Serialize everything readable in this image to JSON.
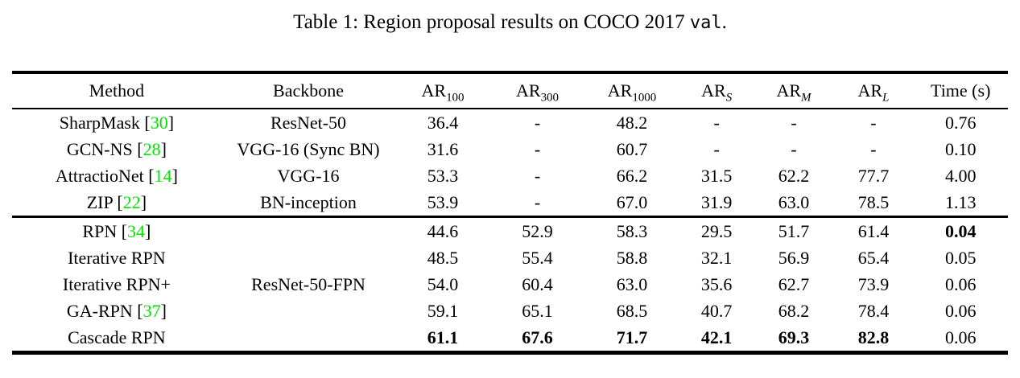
{
  "caption": {
    "prefix": "Table 1: Region proposal results on COCO 2017 ",
    "mono": "val",
    "suffix": "."
  },
  "colors": {
    "citation_green": "#00e400",
    "rule_black": "#000000"
  },
  "table": {
    "headers": [
      {
        "base": "Method"
      },
      {
        "base": "Backbone"
      },
      {
        "base": "AR",
        "sub": "100"
      },
      {
        "base": "AR",
        "sub": "300"
      },
      {
        "base": "AR",
        "sub": "1000"
      },
      {
        "base": "AR",
        "sub": "S",
        "italic_sub": true
      },
      {
        "base": "AR",
        "sub": "M",
        "italic_sub": true
      },
      {
        "base": "AR",
        "sub": "L",
        "italic_sub": true
      },
      {
        "base": "Time (s)"
      }
    ],
    "sections": [
      {
        "rows": [
          {
            "method": {
              "name": "SharpMask",
              "cite": "30"
            },
            "backbone": "ResNet-50",
            "values": [
              "36.4",
              "-",
              "48.2",
              "-",
              "-",
              "-",
              "0.76"
            ],
            "bold_values": []
          },
          {
            "method": {
              "name": "GCN-NS",
              "cite": "28"
            },
            "backbone": "VGG-16 (Sync BN)",
            "values": [
              "31.6",
              "-",
              "60.7",
              "-",
              "-",
              "-",
              "0.10"
            ],
            "bold_values": []
          },
          {
            "method": {
              "name": "AttractioNet",
              "cite": "14"
            },
            "backbone": "VGG-16",
            "values": [
              "53.3",
              "-",
              "66.2",
              "31.5",
              "62.2",
              "77.7",
              "4.00"
            ],
            "bold_values": []
          },
          {
            "method": {
              "name": "ZIP",
              "cite": "22"
            },
            "backbone": "BN-inception",
            "values": [
              "53.9",
              "-",
              "67.0",
              "31.9",
              "63.0",
              "78.5",
              "1.13"
            ],
            "bold_values": []
          }
        ]
      },
      {
        "shared_backbone": "ResNet-50-FPN",
        "rows": [
          {
            "method": {
              "name": "RPN",
              "cite": "34"
            },
            "values": [
              "44.6",
              "52.9",
              "58.3",
              "29.5",
              "51.7",
              "61.4",
              "0.04"
            ],
            "bold_values": [
              6
            ]
          },
          {
            "method": {
              "name": "Iterative RPN"
            },
            "values": [
              "48.5",
              "55.4",
              "58.8",
              "32.1",
              "56.9",
              "65.4",
              "0.05"
            ],
            "bold_values": []
          },
          {
            "method": {
              "name": "Iterative RPN+"
            },
            "values": [
              "54.0",
              "60.4",
              "63.0",
              "35.6",
              "62.7",
              "73.9",
              "0.06"
            ],
            "bold_values": []
          },
          {
            "method": {
              "name": "GA-RPN",
              "cite": "37"
            },
            "values": [
              "59.1",
              "65.1",
              "68.5",
              "40.7",
              "68.2",
              "78.4",
              "0.06"
            ],
            "bold_values": []
          },
          {
            "method": {
              "name": "Cascade RPN"
            },
            "values": [
              "61.1",
              "67.6",
              "71.7",
              "42.1",
              "69.3",
              "82.8",
              "0.06"
            ],
            "bold_values": [
              0,
              1,
              2,
              3,
              4,
              5
            ]
          }
        ]
      }
    ]
  }
}
